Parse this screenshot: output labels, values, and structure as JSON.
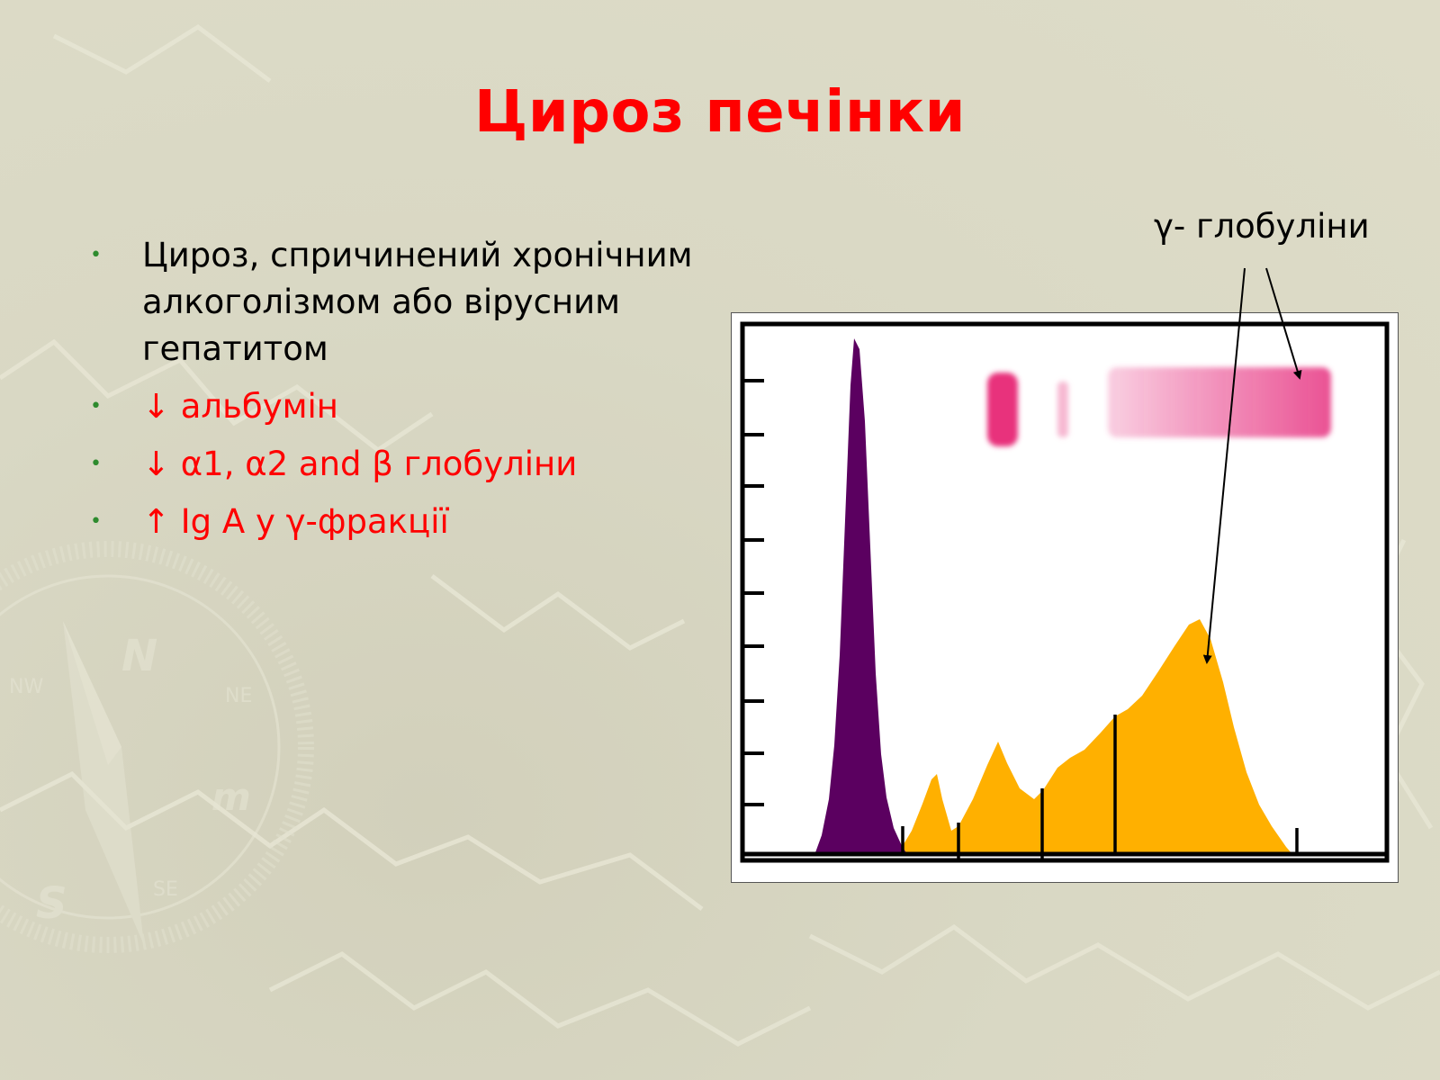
{
  "slide": {
    "title": "Цироз печінки",
    "bullets": [
      {
        "text": "Цироз, спричинений хронічним алкоголізмом або вірусним гепатитом",
        "color": "#000000"
      },
      {
        "text": "↓ альбумін",
        "color": "#ff0000"
      },
      {
        "text": "↓ α1, α2 and β глобуліни",
        "color": "#ff0000"
      },
      {
        "text": "↑ Ig A у γ-фракції",
        "color": "#ff0000"
      }
    ],
    "bullet_symbol": "•",
    "bullet_color": "#2e8b2e",
    "callout_label": "γ- глобуліни"
  },
  "colors": {
    "title": "#ff0000",
    "albumin_peak": "#5b0060",
    "globulin_area": "#ffb000",
    "gel_band": "#e83f88"
  }
}
